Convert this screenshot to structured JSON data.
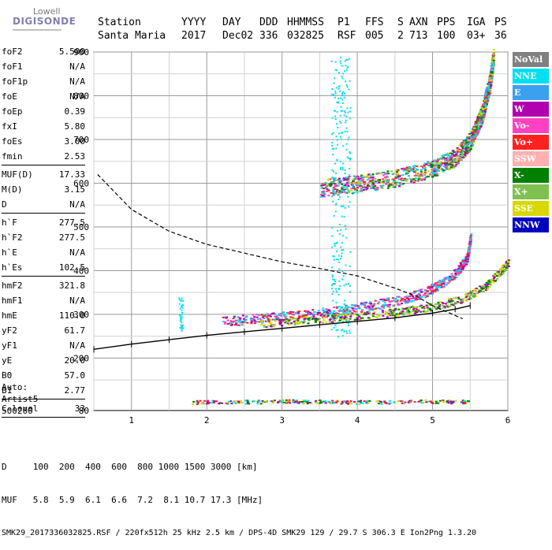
{
  "logo": {
    "line1": "Lowell",
    "line2": "DIGISONDE"
  },
  "header": {
    "labels": [
      "Station",
      "YYYY",
      "DAY",
      "DDD",
      "HHMMSS",
      "P1",
      "FFS",
      "S",
      "AXN",
      "PPS",
      "IGA",
      "PS"
    ],
    "values": [
      "Santa Maria",
      "2017",
      "Dec02",
      "336",
      "032825",
      "RSF",
      "005",
      "2",
      "713",
      "100",
      "03+",
      "36"
    ]
  },
  "params": [
    {
      "k": "foF2",
      "v": "5.500"
    },
    {
      "k": "foF1",
      "v": "N/A"
    },
    {
      "k": "foF1p",
      "v": "N/A"
    },
    {
      "k": "foE",
      "v": "N/A"
    },
    {
      "k": "foEp",
      "v": "0.39"
    },
    {
      "k": "fxI",
      "v": "5.80"
    },
    {
      "k": "foEs",
      "v": "3.00"
    },
    {
      "k": "fmin",
      "v": "2.53"
    },
    {
      "sep": true
    },
    {
      "k": "MUF(D)",
      "v": "17.33"
    },
    {
      "k": "M(D)",
      "v": "3.15"
    },
    {
      "k": "D",
      "v": "N/A"
    },
    {
      "sep": true
    },
    {
      "k": "h`F",
      "v": "277.5"
    },
    {
      "k": "h`F2",
      "v": "277.5"
    },
    {
      "k": "h`E",
      "v": "N/A"
    },
    {
      "k": "h`Es",
      "v": "102.5"
    },
    {
      "sep": true
    },
    {
      "k": "hmF2",
      "v": "321.8"
    },
    {
      "k": "hmF1",
      "v": "N/A"
    },
    {
      "k": "hmE",
      "v": "110.0"
    },
    {
      "k": "yF2",
      "v": "61.7"
    },
    {
      "k": "yF1",
      "v": "N/A"
    },
    {
      "k": "yE",
      "v": "20.0"
    },
    {
      "k": "B0",
      "v": "57.0"
    },
    {
      "k": "B1",
      "v": "2.77"
    },
    {
      "sep": true
    },
    {
      "k": "C-level",
      "v": "33"
    },
    {
      "sep": true
    }
  ],
  "auto": {
    "l1": "Auto:",
    "l2": "Artist5",
    "l3": "500200"
  },
  "bottom": {
    "d_row": "D     100  200  400  600  800 1000 1500 3000 [km]",
    "muf_row": "MUF   5.8  5.9  6.1  6.6  7.2  8.1 10.7 17.3 [MHz]",
    "footer": "SMK29_2017336032825.RSF / 220fx512h 25 kHz 2.5 km / DPS-4D SMK29 129 / 29.7 S 306.3 E Ion2Png 1.3.20"
  },
  "legend": [
    {
      "label": "NoVal",
      "color": "#808080"
    },
    {
      "label": "NNE",
      "color": "#00e0f0"
    },
    {
      "label": "E",
      "color": "#3aa0f0"
    },
    {
      "label": "W",
      "color": "#b000b0"
    },
    {
      "label": "Vo-",
      "color": "#ff40c0"
    },
    {
      "label": "Vo+",
      "color": "#ff2020"
    },
    {
      "label": "SSW",
      "color": "#ffb0b0"
    },
    {
      "label": "X-",
      "color": "#008000"
    },
    {
      "label": "X+",
      "color": "#80c050"
    },
    {
      "label": "SSE",
      "color": "#d8d800"
    },
    {
      "label": "NNW",
      "color": "#0000c0"
    }
  ],
  "chart_data": {
    "type": "scatter",
    "xlim": [
      0.5,
      6.0
    ],
    "ylim": [
      80,
      900
    ],
    "x_ticks": [
      1,
      2,
      3,
      4,
      5,
      6
    ],
    "y_ticks": [
      80,
      200,
      300,
      400,
      500,
      600,
      700,
      800,
      900
    ],
    "grid": true,
    "legend_position": "right",
    "profile_curve": [
      [
        0.5,
        220
      ],
      [
        1.0,
        232
      ],
      [
        1.5,
        242
      ],
      [
        2.0,
        252
      ],
      [
        2.5,
        260
      ],
      [
        3.0,
        268
      ],
      [
        3.5,
        276
      ],
      [
        4.0,
        284
      ],
      [
        4.5,
        292
      ],
      [
        5.0,
        303
      ],
      [
        5.3,
        312
      ],
      [
        5.5,
        320
      ]
    ],
    "muf_curve": [
      [
        0.55,
        620
      ],
      [
        1.0,
        540
      ],
      [
        1.5,
        490
      ],
      [
        2.0,
        460
      ],
      [
        2.5,
        440
      ],
      [
        3.0,
        420
      ],
      [
        3.5,
        405
      ],
      [
        4.0,
        388
      ],
      [
        4.5,
        360
      ],
      [
        4.8,
        340
      ],
      [
        5.0,
        320
      ],
      [
        5.2,
        305
      ],
      [
        5.4,
        290
      ]
    ],
    "o_trace": [
      [
        2.2,
        285
      ],
      [
        2.8,
        293
      ],
      [
        3.3,
        300
      ],
      [
        3.8,
        310
      ],
      [
        4.2,
        322
      ],
      [
        4.6,
        336
      ],
      [
        4.9,
        352
      ],
      [
        5.1,
        370
      ],
      [
        5.3,
        395
      ],
      [
        5.45,
        430
      ],
      [
        5.5,
        480
      ]
    ],
    "x_trace": [
      [
        2.7,
        280
      ],
      [
        3.3,
        288
      ],
      [
        3.9,
        296
      ],
      [
        4.5,
        306
      ],
      [
        5.0,
        318
      ],
      [
        5.4,
        338
      ],
      [
        5.7,
        365
      ],
      [
        5.9,
        400
      ],
      [
        6.0,
        420
      ]
    ],
    "upper_trace": [
      [
        3.5,
        590
      ],
      [
        4.0,
        600
      ],
      [
        4.5,
        612
      ],
      [
        5.0,
        635
      ],
      [
        5.3,
        660
      ],
      [
        5.5,
        700
      ],
      [
        5.65,
        760
      ],
      [
        5.75,
        830
      ],
      [
        5.8,
        890
      ]
    ],
    "es_trace": [
      [
        1.8,
        100
      ],
      [
        2.5,
        101
      ],
      [
        3.0,
        102
      ],
      [
        3.7,
        101
      ],
      [
        4.2,
        100
      ],
      [
        4.8,
        102
      ],
      [
        5.5,
        101
      ]
    ]
  }
}
